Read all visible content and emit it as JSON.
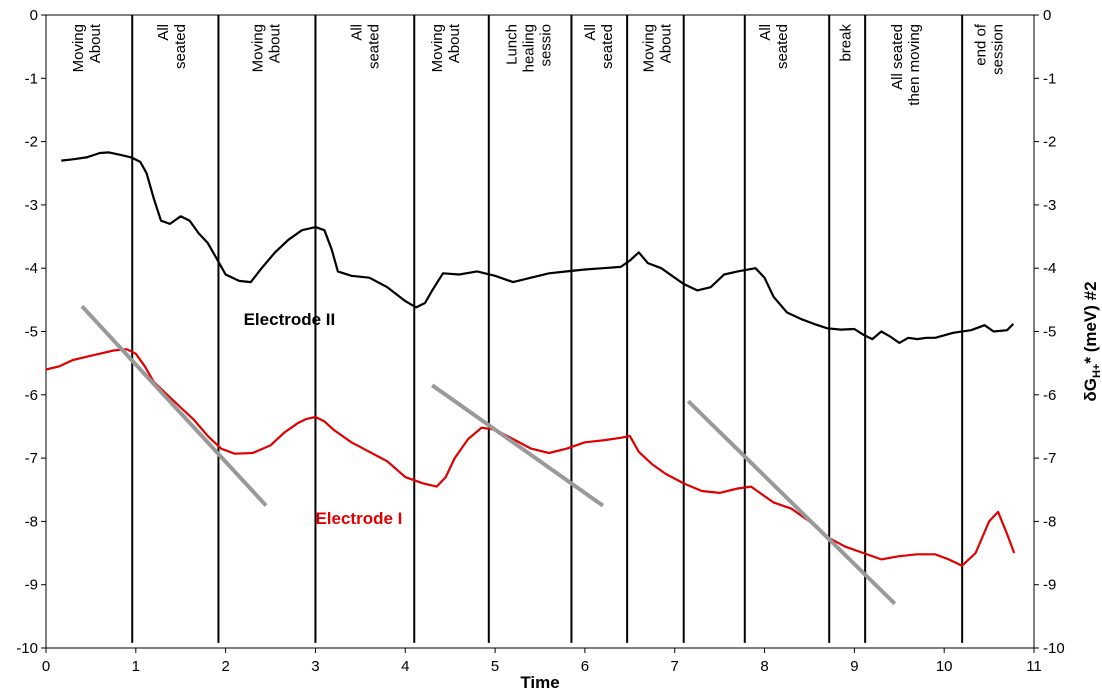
{
  "chart_data": {
    "type": "line",
    "xlabel": "Time",
    "ylabel_right": "δG",
    "ylabel_right_sub": "H+",
    "ylabel_right_rest": "* (meV) #2",
    "xlim": [
      0,
      11
    ],
    "ylim": [
      -10,
      0
    ],
    "x_ticks": [
      "0",
      "1",
      "2",
      "3",
      "4",
      "5",
      "6",
      "7",
      "8",
      "9",
      "10",
      "11"
    ],
    "y_ticks_left": [
      "0",
      "-1",
      "-2",
      "-3",
      "-4",
      "-5",
      "-6",
      "-7",
      "-8",
      "-9",
      "-10"
    ],
    "y_ticks_right": [
      "0",
      "-1",
      "-2",
      "-3",
      "-4",
      "-5",
      "-6",
      "-7",
      "-8",
      "-9",
      "-10"
    ],
    "grid": false,
    "colors": {
      "electrode_1": "#e00000",
      "electrode_2": "#000000",
      "trend": "#999999",
      "boundary": "#000000"
    },
    "series": [
      {
        "name": "Electrode II",
        "color": "#000000",
        "points": [
          [
            0.17,
            -2.3
          ],
          [
            0.3,
            -2.28
          ],
          [
            0.45,
            -2.25
          ],
          [
            0.6,
            -2.18
          ],
          [
            0.7,
            -2.17
          ],
          [
            0.8,
            -2.2
          ],
          [
            0.95,
            -2.25
          ],
          [
            1.05,
            -2.32
          ],
          [
            1.12,
            -2.5
          ],
          [
            1.2,
            -2.9
          ],
          [
            1.28,
            -3.25
          ],
          [
            1.38,
            -3.3
          ],
          [
            1.5,
            -3.18
          ],
          [
            1.6,
            -3.25
          ],
          [
            1.7,
            -3.45
          ],
          [
            1.8,
            -3.6
          ],
          [
            1.9,
            -3.85
          ],
          [
            2.0,
            -4.1
          ],
          [
            2.15,
            -4.2
          ],
          [
            2.28,
            -4.22
          ],
          [
            2.4,
            -4.0
          ],
          [
            2.55,
            -3.75
          ],
          [
            2.7,
            -3.55
          ],
          [
            2.85,
            -3.4
          ],
          [
            3.0,
            -3.35
          ],
          [
            3.1,
            -3.4
          ],
          [
            3.18,
            -3.7
          ],
          [
            3.25,
            -4.05
          ],
          [
            3.4,
            -4.12
          ],
          [
            3.6,
            -4.15
          ],
          [
            3.8,
            -4.3
          ],
          [
            4.0,
            -4.52
          ],
          [
            4.12,
            -4.62
          ],
          [
            4.22,
            -4.55
          ],
          [
            4.3,
            -4.35
          ],
          [
            4.42,
            -4.08
          ],
          [
            4.6,
            -4.1
          ],
          [
            4.8,
            -4.05
          ],
          [
            5.0,
            -4.12
          ],
          [
            5.2,
            -4.22
          ],
          [
            5.4,
            -4.15
          ],
          [
            5.6,
            -4.08
          ],
          [
            5.8,
            -4.05
          ],
          [
            6.0,
            -4.02
          ],
          [
            6.2,
            -4.0
          ],
          [
            6.4,
            -3.98
          ],
          [
            6.5,
            -3.88
          ],
          [
            6.6,
            -3.75
          ],
          [
            6.7,
            -3.92
          ],
          [
            6.85,
            -4.0
          ],
          [
            7.0,
            -4.15
          ],
          [
            7.1,
            -4.25
          ],
          [
            7.25,
            -4.35
          ],
          [
            7.4,
            -4.3
          ],
          [
            7.55,
            -4.1
          ],
          [
            7.7,
            -4.05
          ],
          [
            7.9,
            -4.0
          ],
          [
            8.0,
            -4.15
          ],
          [
            8.1,
            -4.45
          ],
          [
            8.25,
            -4.7
          ],
          [
            8.4,
            -4.8
          ],
          [
            8.55,
            -4.88
          ],
          [
            8.7,
            -4.95
          ],
          [
            8.85,
            -4.97
          ],
          [
            9.0,
            -4.96
          ],
          [
            9.1,
            -5.05
          ],
          [
            9.2,
            -5.12
          ],
          [
            9.3,
            -5.0
          ],
          [
            9.4,
            -5.08
          ],
          [
            9.5,
            -5.18
          ],
          [
            9.6,
            -5.1
          ],
          [
            9.7,
            -5.12
          ],
          [
            9.8,
            -5.1
          ],
          [
            9.9,
            -5.1
          ],
          [
            10.1,
            -5.02
          ],
          [
            10.3,
            -4.98
          ],
          [
            10.45,
            -4.9
          ],
          [
            10.55,
            -5.0
          ],
          [
            10.7,
            -4.98
          ],
          [
            10.77,
            -4.88
          ]
        ]
      },
      {
        "name": "Electrode I",
        "color": "#e00000",
        "points": [
          [
            0.0,
            -5.6
          ],
          [
            0.15,
            -5.55
          ],
          [
            0.3,
            -5.45
          ],
          [
            0.45,
            -5.4
          ],
          [
            0.6,
            -5.35
          ],
          [
            0.75,
            -5.3
          ],
          [
            0.9,
            -5.28
          ],
          [
            1.0,
            -5.35
          ],
          [
            1.1,
            -5.55
          ],
          [
            1.2,
            -5.8
          ],
          [
            1.35,
            -6.0
          ],
          [
            1.5,
            -6.2
          ],
          [
            1.65,
            -6.4
          ],
          [
            1.8,
            -6.65
          ],
          [
            1.95,
            -6.85
          ],
          [
            2.1,
            -6.93
          ],
          [
            2.3,
            -6.92
          ],
          [
            2.5,
            -6.8
          ],
          [
            2.65,
            -6.6
          ],
          [
            2.8,
            -6.45
          ],
          [
            2.9,
            -6.38
          ],
          [
            3.0,
            -6.35
          ],
          [
            3.1,
            -6.42
          ],
          [
            3.2,
            -6.55
          ],
          [
            3.4,
            -6.75
          ],
          [
            3.6,
            -6.9
          ],
          [
            3.8,
            -7.05
          ],
          [
            4.0,
            -7.3
          ],
          [
            4.2,
            -7.4
          ],
          [
            4.35,
            -7.45
          ],
          [
            4.45,
            -7.3
          ],
          [
            4.55,
            -7.0
          ],
          [
            4.7,
            -6.7
          ],
          [
            4.85,
            -6.52
          ],
          [
            5.0,
            -6.55
          ],
          [
            5.2,
            -6.7
          ],
          [
            5.4,
            -6.85
          ],
          [
            5.6,
            -6.92
          ],
          [
            5.8,
            -6.85
          ],
          [
            6.0,
            -6.75
          ],
          [
            6.2,
            -6.72
          ],
          [
            6.4,
            -6.68
          ],
          [
            6.5,
            -6.65
          ],
          [
            6.6,
            -6.9
          ],
          [
            6.75,
            -7.1
          ],
          [
            6.9,
            -7.25
          ],
          [
            7.1,
            -7.4
          ],
          [
            7.3,
            -7.52
          ],
          [
            7.5,
            -7.55
          ],
          [
            7.7,
            -7.48
          ],
          [
            7.85,
            -7.45
          ],
          [
            8.0,
            -7.6
          ],
          [
            8.1,
            -7.7
          ],
          [
            8.3,
            -7.8
          ],
          [
            8.5,
            -8.0
          ],
          [
            8.7,
            -8.25
          ],
          [
            8.9,
            -8.4
          ],
          [
            9.1,
            -8.5
          ],
          [
            9.3,
            -8.6
          ],
          [
            9.5,
            -8.55
          ],
          [
            9.7,
            -8.52
          ],
          [
            9.9,
            -8.52
          ],
          [
            10.05,
            -8.6
          ],
          [
            10.2,
            -8.7
          ],
          [
            10.35,
            -8.5
          ],
          [
            10.5,
            -8.0
          ],
          [
            10.6,
            -7.85
          ],
          [
            10.7,
            -8.2
          ],
          [
            10.78,
            -8.5
          ]
        ]
      }
    ],
    "series_labels": [
      {
        "text": "Electrode II",
        "x": 2.2,
        "y": -4.8,
        "color": "#000000"
      },
      {
        "text": "Electrode I",
        "x": 3.0,
        "y": -7.95,
        "color": "#e00000"
      }
    ],
    "trend_lines": [
      {
        "x1": 0.4,
        "y1": -4.6,
        "x2": 2.45,
        "y2": -7.75
      },
      {
        "x1": 4.3,
        "y1": -5.85,
        "x2": 6.2,
        "y2": -7.75
      },
      {
        "x1": 7.15,
        "y1": -6.1,
        "x2": 9.45,
        "y2": -9.3
      }
    ],
    "boundaries": [
      0.96,
      1.92,
      3.0,
      4.1,
      4.93,
      5.85,
      6.47,
      7.1,
      7.78,
      8.72,
      9.12,
      10.2
    ],
    "phases": [
      {
        "x": 0.45,
        "lines": [
          "Moving",
          "About"
        ]
      },
      {
        "x": 1.4,
        "lines": [
          "All",
          "seated"
        ]
      },
      {
        "x": 2.45,
        "lines": [
          "Moving",
          "About"
        ]
      },
      {
        "x": 3.55,
        "lines": [
          "All",
          "seated"
        ]
      },
      {
        "x": 4.45,
        "lines": [
          "Moving",
          "About"
        ]
      },
      {
        "x": 5.37,
        "lines": [
          "Lunch",
          "healing",
          "sessio"
        ]
      },
      {
        "x": 6.15,
        "lines": [
          "All",
          "seated"
        ]
      },
      {
        "x": 6.8,
        "lines": [
          "Moving",
          "About"
        ]
      },
      {
        "x": 8.1,
        "lines": [
          "All",
          "seated"
        ]
      },
      {
        "x": 8.9,
        "lines": [
          "break"
        ]
      },
      {
        "x": 9.57,
        "lines": [
          "All seated",
          "then moving"
        ]
      },
      {
        "x": 10.5,
        "lines": [
          "end of",
          "session"
        ]
      }
    ]
  }
}
